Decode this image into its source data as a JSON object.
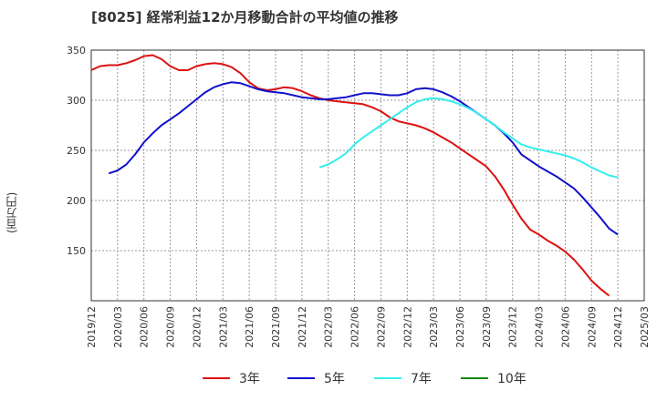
{
  "title": "[8025]  経常利益12か月移動合計の平均値の推移",
  "ylabel": "(百万円)",
  "chart_data": {
    "type": "line",
    "ylim": [
      100,
      350
    ],
    "yticks": [
      150,
      200,
      250,
      300,
      350
    ],
    "xticks": [
      "2019/12",
      "2020/03",
      "2020/06",
      "2020/09",
      "2020/12",
      "2021/03",
      "2021/06",
      "2021/09",
      "2021/12",
      "2022/03",
      "2022/06",
      "2022/09",
      "2022/12",
      "2023/03",
      "2023/06",
      "2023/09",
      "2023/12",
      "2024/03",
      "2024/06",
      "2024/09",
      "2024/12",
      "2025/03"
    ],
    "grid": true,
    "legend_position": "bottom",
    "start_month": "2019/12",
    "series": [
      {
        "name": "3年",
        "color": "#dd1111",
        "start": "2019/12",
        "values": [
          330,
          334,
          335,
          335,
          337,
          340,
          344,
          345,
          341,
          334,
          330,
          330,
          334,
          336,
          337,
          336,
          333,
          327,
          318,
          312,
          310,
          311,
          313,
          312,
          309,
          305,
          302,
          300,
          299,
          298,
          297,
          296,
          293,
          289,
          283,
          279,
          277,
          275,
          272,
          268,
          263,
          258,
          252,
          246,
          240,
          234,
          224,
          211,
          196,
          182,
          171,
          166,
          160,
          155,
          149,
          141,
          131,
          120,
          112,
          105
        ],
        "marker": "none"
      },
      {
        "name": "5年",
        "color": "#1111cc",
        "start": "2020/02",
        "values": [
          227,
          230,
          236,
          246,
          258,
          267,
          275,
          281,
          287,
          294,
          301,
          308,
          313,
          316,
          318,
          317,
          314,
          311,
          309,
          308,
          307,
          305,
          303,
          302,
          301,
          301,
          302,
          303,
          305,
          307,
          307,
          306,
          305,
          305,
          307,
          311,
          312,
          311,
          308,
          304,
          299,
          293,
          287,
          281,
          275,
          267,
          258,
          246,
          240,
          234,
          229,
          224,
          218,
          212,
          203,
          193,
          183,
          172,
          166
        ],
        "marker": "none"
      },
      {
        "name": "7年",
        "color": "#33eeee",
        "start": "2022/02",
        "values": [
          233,
          236,
          241,
          247,
          256,
          263,
          269,
          275,
          281,
          287,
          293,
          298,
          301,
          302,
          301,
          299,
          296,
          292,
          287,
          281,
          275,
          268,
          262,
          256,
          253,
          251,
          249,
          247,
          245,
          242,
          238,
          233,
          229,
          225,
          223
        ],
        "marker": "none"
      },
      {
        "name": "10年",
        "color": "#118811",
        "start": "2019/12",
        "values": [],
        "marker": "none"
      }
    ]
  }
}
